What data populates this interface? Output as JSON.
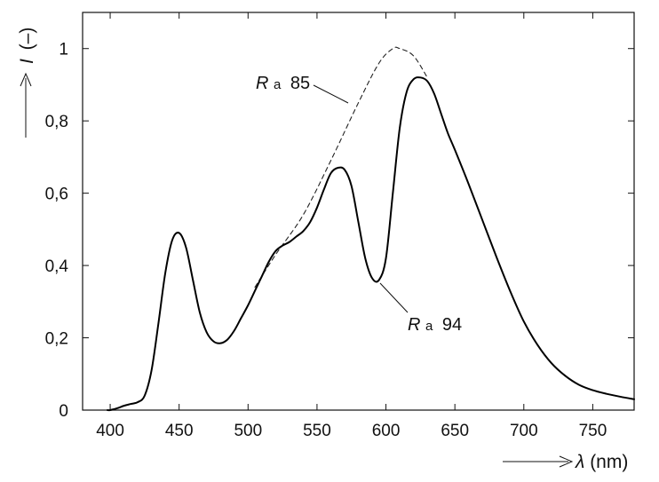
{
  "chart_data": {
    "type": "line",
    "xlabel": {
      "symbol": "λ",
      "unit": "(nm)"
    },
    "ylabel": {
      "symbol": "I",
      "unit": "(–)"
    },
    "xlim": [
      380,
      780
    ],
    "ylim": [
      0,
      1.1
    ],
    "x_ticks": [
      400,
      450,
      500,
      550,
      600,
      650,
      700,
      750
    ],
    "y_ticks": [
      0,
      0.2,
      0.4,
      0.6,
      0.8,
      1.0
    ],
    "y_tick_labels": [
      "0",
      "0,2",
      "0,4",
      "0,6",
      "0,8",
      "1"
    ],
    "grid": false,
    "series": [
      {
        "name": "Ra 85",
        "style": "dashed",
        "color": "#222222",
        "x": [
          505,
          520,
          540,
          560,
          580,
          595,
          605,
          610,
          620,
          630
        ],
        "y": [
          0.34,
          0.43,
          0.54,
          0.69,
          0.85,
          0.96,
          1.0,
          1.0,
          0.98,
          0.92
        ]
      },
      {
        "name": "Ra 94",
        "style": "solid",
        "color": "#000000",
        "x": [
          398,
          400,
          405,
          410,
          415,
          420,
          425,
          430,
          435,
          440,
          445,
          450,
          455,
          460,
          465,
          470,
          475,
          480,
          485,
          490,
          495,
          500,
          505,
          510,
          515,
          520,
          525,
          530,
          535,
          540,
          545,
          550,
          555,
          560,
          565,
          570,
          575,
          580,
          585,
          590,
          595,
          600,
          605,
          610,
          615,
          620,
          625,
          630,
          635,
          640,
          645,
          650,
          660,
          670,
          680,
          690,
          700,
          710,
          720,
          730,
          740,
          750,
          760,
          770,
          780
        ],
        "y": [
          0,
          0,
          0.005,
          0.012,
          0.017,
          0.022,
          0.04,
          0.11,
          0.24,
          0.38,
          0.47,
          0.49,
          0.45,
          0.36,
          0.27,
          0.215,
          0.19,
          0.185,
          0.195,
          0.22,
          0.255,
          0.29,
          0.33,
          0.37,
          0.41,
          0.44,
          0.455,
          0.465,
          0.48,
          0.495,
          0.52,
          0.56,
          0.61,
          0.655,
          0.67,
          0.665,
          0.62,
          0.52,
          0.42,
          0.365,
          0.36,
          0.42,
          0.6,
          0.78,
          0.88,
          0.915,
          0.92,
          0.91,
          0.875,
          0.82,
          0.765,
          0.72,
          0.625,
          0.525,
          0.425,
          0.33,
          0.245,
          0.18,
          0.13,
          0.095,
          0.07,
          0.055,
          0.045,
          0.037,
          0.03
        ]
      }
    ],
    "annotations": [
      {
        "symbol": "R",
        "subscript": "a",
        "value": "85",
        "target_x": 573,
        "target_y": 0.85
      },
      {
        "symbol": "R",
        "subscript": "a",
        "value": "94",
        "target_x": 595,
        "target_y": 0.36
      }
    ]
  }
}
